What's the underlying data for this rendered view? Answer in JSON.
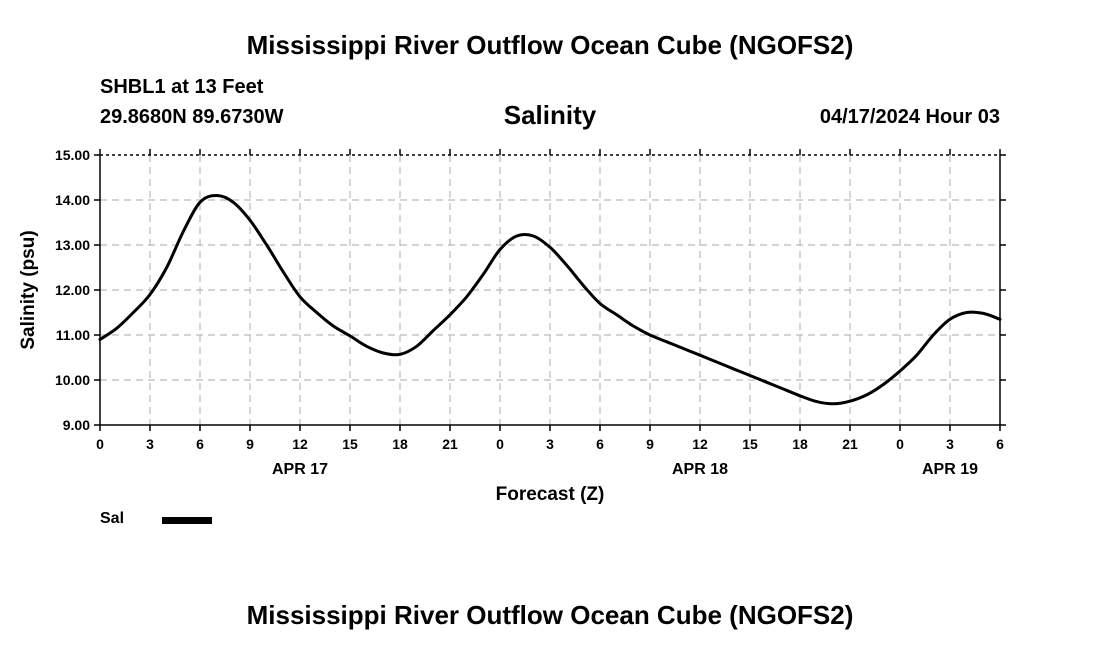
{
  "header": {
    "title": "Mississippi River Outflow Ocean Cube (NGOFS2)",
    "station": "SHBL1 at 13 Feet",
    "coordinates": "29.8680N  89.6730W",
    "parameter": "Salinity",
    "datetime": "04/17/2024 Hour 03"
  },
  "footer": {
    "title": "Mississippi River Outflow Ocean Cube (NGOFS2)"
  },
  "legend": {
    "label": "Sal"
  },
  "colors": {
    "line": "#000000",
    "grid": "#bbbbbb"
  },
  "chart_data": {
    "type": "line",
    "ylabel": "Salinity (psu)",
    "xlabel": "Forecast (Z)",
    "ylim": [
      9.0,
      15.0
    ],
    "yticks": [
      "9.00",
      "10.00",
      "11.00",
      "12.00",
      "13.00",
      "14.00",
      "15.00"
    ],
    "xlim": [
      0,
      54
    ],
    "xtick_values": [
      0,
      3,
      6,
      9,
      12,
      15,
      18,
      21,
      24,
      27,
      30,
      33,
      36,
      39,
      42,
      45,
      48,
      51,
      54
    ],
    "xtick_labels": [
      "0",
      "3",
      "6",
      "9",
      "12",
      "15",
      "18",
      "21",
      "0",
      "3",
      "6",
      "9",
      "12",
      "15",
      "18",
      "21",
      "0",
      "3",
      "6"
    ],
    "date_labels": [
      {
        "hour": 12,
        "label": "APR 17"
      },
      {
        "hour": 36,
        "label": "APR 18"
      },
      {
        "hour": 51,
        "label": "APR 19"
      }
    ],
    "grid": true,
    "series": [
      {
        "name": "Sal",
        "x": [
          0,
          1,
          2,
          3,
          4,
          5,
          6,
          7,
          8,
          9,
          10,
          11,
          12,
          13,
          14,
          15,
          16,
          17,
          18,
          19,
          20,
          21,
          22,
          23,
          24,
          25,
          26,
          27,
          28,
          29,
          30,
          31,
          32,
          33,
          34,
          35,
          36,
          37,
          38,
          39,
          40,
          41,
          42,
          43,
          44,
          45,
          46,
          47,
          48,
          49,
          50,
          51,
          52,
          53,
          54
        ],
        "y": [
          10.9,
          11.15,
          11.5,
          11.9,
          12.5,
          13.3,
          13.95,
          14.1,
          13.95,
          13.55,
          13.0,
          12.4,
          11.85,
          11.5,
          11.2,
          10.98,
          10.75,
          10.6,
          10.57,
          10.75,
          11.1,
          11.45,
          11.85,
          12.35,
          12.9,
          13.2,
          13.2,
          12.95,
          12.55,
          12.1,
          11.7,
          11.45,
          11.2,
          11.0,
          10.85,
          10.7,
          10.55,
          10.4,
          10.25,
          10.1,
          9.95,
          9.8,
          9.65,
          9.52,
          9.47,
          9.53,
          9.67,
          9.9,
          10.2,
          10.55,
          11.0,
          11.35,
          11.5,
          11.48,
          11.35
        ]
      }
    ]
  }
}
